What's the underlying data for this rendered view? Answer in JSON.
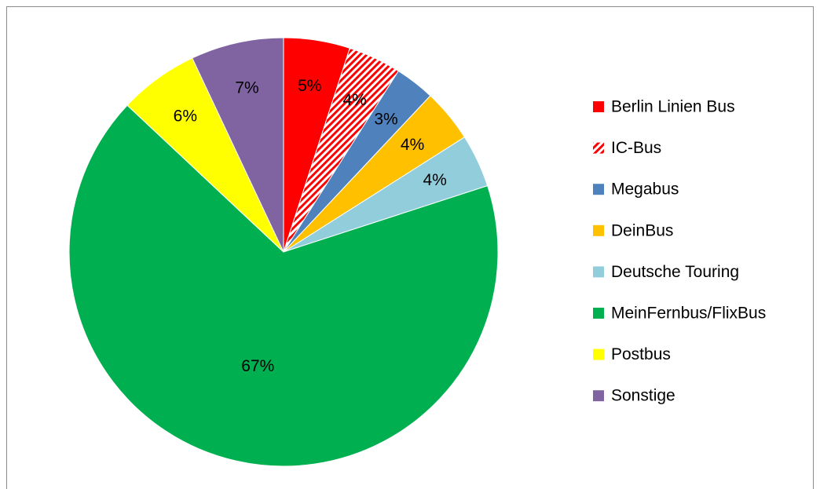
{
  "chart_data": {
    "type": "pie",
    "categories": [
      "Berlin Linien Bus",
      "IC-Bus",
      "Megabus",
      "DeinBus",
      "Deutsche Touring",
      "MeinFernbus/FlixBus",
      "Postbus",
      "Sonstige"
    ],
    "values": [
      5,
      4,
      3,
      4,
      4,
      67,
      6,
      7
    ],
    "value_labels": [
      "5%",
      "4%",
      "3%",
      "4%",
      "4%",
      "67%",
      "6%",
      "7%"
    ],
    "colors": [
      "#ff0000",
      "#ff0000",
      "#4f81bd",
      "#ffc000",
      "#92cddc",
      "#00b050",
      "#ffff00",
      "#8064a2"
    ],
    "hatch": [
      false,
      true,
      false,
      false,
      false,
      false,
      false,
      false
    ],
    "legend": "right"
  }
}
